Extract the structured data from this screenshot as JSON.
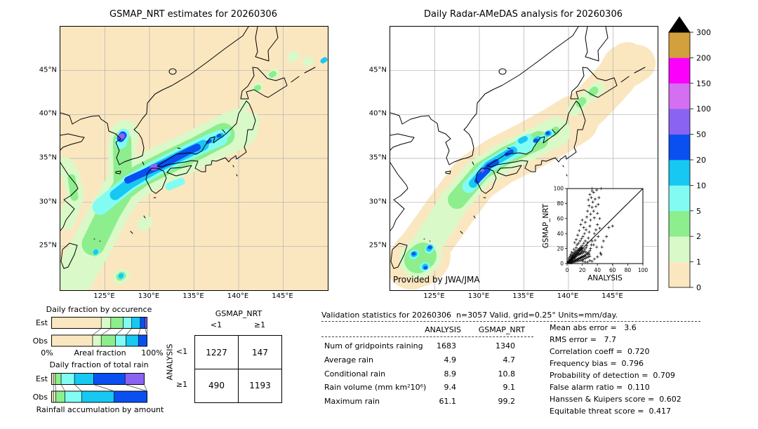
{
  "maps": {
    "left": {
      "title": "GSMAP_NRT estimates for 20260306",
      "bg_color": "#FAE7C0"
    },
    "right": {
      "title": "Daily Radar-AMeDAS analysis for 20260306",
      "bg_color": "#FFFFFF",
      "credit": "Provided by JWA/JMA"
    },
    "lon_ticks": [
      "125°E",
      "130°E",
      "135°E",
      "140°E",
      "145°E"
    ],
    "lat_ticks": [
      "45°N",
      "40°N",
      "35°N",
      "30°N",
      "25°N"
    ],
    "lon_range": [
      120,
      150
    ],
    "lat_range": [
      20,
      50
    ]
  },
  "chart_data": {
    "maps_summary": [
      {
        "type": "heatmap",
        "title": "GSMAP_NRT estimates for 20260306",
        "units": "mm/day",
        "description": "Satellite rain band stretching SW-NE from near Taiwan across the East China Sea, Korea and western Japan; cores of 20-50 mm/day with 50-100 mm/day spots over central Korea and northern Kyushu."
      },
      {
        "type": "heatmap",
        "title": "Daily Radar-AMeDAS analysis for 20260306",
        "units": "mm/day",
        "description": "Radar analysis over Japan only (white = no data): same SW-NE rain band with 20-50 mm/day cores over western Japan and a rainfall cluster near Taiwan/Okinawa; light 0-1 mm/day envelope along the band and over Hokkaido."
      }
    ],
    "colorbar": {
      "levels": [
        "0",
        "1",
        "2",
        "5",
        "10",
        "20",
        "50",
        "100",
        "150",
        "200",
        "300"
      ],
      "colors": [
        "#FAE7C0",
        "#D9F9C8",
        "#8CEE8C",
        "#82FCF2",
        "#16C8F2",
        "#0A50F0",
        "#8B63F2",
        "#D46FF2",
        "#FB00FB",
        "#D2A03C"
      ],
      "over_color": "#000000"
    },
    "occurrence_bar": {
      "type": "bar",
      "stacked": true,
      "orientation": "horizontal",
      "title": "Daily fraction by occurence",
      "xlabel": "Areal fraction",
      "x_min_label": "0%",
      "x_max_label": "100%",
      "bins_mm_day": [
        "0-1",
        "1-2",
        "2-5",
        "5-10",
        "10-20",
        "20-50",
        "50-100"
      ],
      "colors": [
        "#FAE7C0",
        "#D9F9C8",
        "#8CEE8C",
        "#82FCF2",
        "#16C8F2",
        "#0A50F0",
        "#8B63F2"
      ],
      "rows": [
        {
          "name": "Est",
          "values": [
            52,
            10,
            13,
            9,
            9,
            5,
            2
          ]
        },
        {
          "name": "Obs",
          "values": [
            43,
            9,
            15,
            11,
            13,
            9,
            0
          ]
        }
      ]
    },
    "total_rain_bar": {
      "type": "bar",
      "stacked": true,
      "orientation": "horizontal",
      "title": "Daily fraction of total rain",
      "xlabel": "Rainfall accumulation by amount",
      "bins_mm_day": [
        "0-1",
        "1-2",
        "2-5",
        "5-10",
        "10-20",
        "20-50",
        "50-100"
      ],
      "colors": [
        "#FAE7C0",
        "#D9F9C8",
        "#8CEE8C",
        "#82FCF2",
        "#16C8F2",
        "#0A50F0",
        "#8B63F2"
      ],
      "rows": [
        {
          "name": "Est",
          "values": [
            2,
            2,
            6,
            14,
            20,
            33,
            20
          ]
        },
        {
          "name": "Obs",
          "values": [
            2,
            2.5,
            9.5,
            17.5,
            34,
            34.5,
            0
          ]
        }
      ]
    },
    "contingency": {
      "type": "table",
      "col_group": "GSMAP_NRT",
      "row_group": "ANALYSIS",
      "col_labels": [
        "<1",
        "≥1"
      ],
      "row_labels": [
        "<1",
        "≥1"
      ],
      "values": [
        [
          "1227",
          "147"
        ],
        [
          "490",
          "1193"
        ]
      ]
    },
    "scatter": {
      "type": "scatter",
      "marker": "+",
      "xlabel": "ANALYSIS",
      "ylabel": "GSMAP_NRT",
      "xlim": [
        0,
        100
      ],
      "ylim": [
        0,
        100
      ],
      "ticks": [
        0,
        20,
        40,
        60,
        80,
        100
      ],
      "identity_line": true,
      "points": [
        [
          1,
          2
        ],
        [
          2,
          1
        ],
        [
          2,
          3
        ],
        [
          2,
          6
        ],
        [
          3,
          2
        ],
        [
          3,
          4
        ],
        [
          3,
          8
        ],
        [
          4,
          2
        ],
        [
          4,
          5
        ],
        [
          4,
          10
        ],
        [
          5,
          3
        ],
        [
          5,
          6
        ],
        [
          5,
          12
        ],
        [
          6,
          2
        ],
        [
          6,
          5
        ],
        [
          6,
          9
        ],
        [
          6,
          15
        ],
        [
          7,
          3
        ],
        [
          7,
          6
        ],
        [
          7,
          11
        ],
        [
          8,
          4
        ],
        [
          8,
          8
        ],
        [
          8,
          14
        ],
        [
          9,
          3
        ],
        [
          9,
          7
        ],
        [
          9,
          12
        ],
        [
          9,
          19
        ],
        [
          10,
          4
        ],
        [
          10,
          8
        ],
        [
          10,
          15
        ],
        [
          11,
          5
        ],
        [
          11,
          9
        ],
        [
          11,
          17
        ],
        [
          12,
          4
        ],
        [
          12,
          10
        ],
        [
          12,
          21
        ],
        [
          13,
          6
        ],
        [
          13,
          12
        ],
        [
          13,
          25
        ],
        [
          14,
          5
        ],
        [
          14,
          11
        ],
        [
          14,
          18
        ],
        [
          15,
          7
        ],
        [
          15,
          13
        ],
        [
          15,
          27
        ],
        [
          16,
          6
        ],
        [
          16,
          12
        ],
        [
          16,
          20
        ],
        [
          17,
          8
        ],
        [
          17,
          14
        ],
        [
          17,
          30
        ],
        [
          18,
          7
        ],
        [
          18,
          13
        ],
        [
          18,
          22
        ],
        [
          19,
          9
        ],
        [
          19,
          16
        ],
        [
          19,
          33
        ],
        [
          20,
          8
        ],
        [
          20,
          14
        ],
        [
          20,
          24
        ],
        [
          21,
          10
        ],
        [
          21,
          17
        ],
        [
          21,
          36
        ],
        [
          22,
          9
        ],
        [
          22,
          15
        ],
        [
          22,
          27
        ],
        [
          23,
          11
        ],
        [
          23,
          19
        ],
        [
          23,
          40
        ],
        [
          24,
          10
        ],
        [
          24,
          16
        ],
        [
          24,
          30
        ],
        [
          25,
          12
        ],
        [
          25,
          21
        ],
        [
          25,
          45
        ],
        [
          26,
          14
        ],
        [
          26,
          24
        ],
        [
          27,
          12
        ],
        [
          27,
          28
        ],
        [
          28,
          15
        ],
        [
          28,
          34
        ],
        [
          29,
          13
        ],
        [
          29,
          42
        ],
        [
          30,
          17
        ],
        [
          30,
          50
        ],
        [
          31,
          20
        ],
        [
          31,
          58
        ],
        [
          32,
          25
        ],
        [
          33,
          30
        ],
        [
          2,
          2
        ],
        [
          3,
          3
        ],
        [
          4,
          4
        ],
        [
          5,
          5
        ],
        [
          6,
          7
        ],
        [
          7,
          8
        ],
        [
          8,
          10
        ],
        [
          9,
          9
        ],
        [
          10,
          11
        ],
        [
          11,
          13
        ],
        [
          12,
          14
        ],
        [
          13,
          16
        ],
        [
          14,
          15
        ],
        [
          15,
          18
        ],
        [
          16,
          17
        ],
        [
          17,
          19
        ],
        [
          18,
          18
        ],
        [
          19,
          21
        ],
        [
          20,
          20
        ],
        [
          4,
          1
        ],
        [
          6,
          1
        ],
        [
          8,
          2
        ],
        [
          10,
          2
        ],
        [
          12,
          3
        ],
        [
          14,
          3
        ],
        [
          16,
          4
        ],
        [
          18,
          4
        ],
        [
          20,
          5
        ],
        [
          22,
          6
        ],
        [
          24,
          7
        ],
        [
          26,
          8
        ],
        [
          28,
          9
        ],
        [
          30,
          10
        ],
        [
          33,
          3
        ],
        [
          36,
          6
        ],
        [
          40,
          9
        ],
        [
          44,
          14
        ],
        [
          46,
          22
        ],
        [
          48,
          30
        ],
        [
          52,
          36
        ],
        [
          55,
          48
        ],
        [
          60,
          50
        ],
        [
          10,
          28
        ],
        [
          12,
          32
        ],
        [
          14,
          38
        ],
        [
          16,
          44
        ],
        [
          18,
          52
        ],
        [
          20,
          58
        ],
        [
          22,
          48
        ],
        [
          24,
          55
        ],
        [
          26,
          62
        ],
        [
          27,
          70
        ],
        [
          28,
          85
        ],
        [
          29,
          77
        ],
        [
          30,
          92
        ],
        [
          31,
          66
        ],
        [
          32,
          88
        ],
        [
          33,
          75
        ],
        [
          33,
          97
        ],
        [
          34,
          82
        ],
        [
          35,
          70
        ],
        [
          35,
          95
        ],
        [
          36,
          61
        ],
        [
          37,
          86
        ],
        [
          38,
          76
        ],
        [
          39,
          98
        ],
        [
          40,
          67
        ],
        [
          41,
          79
        ],
        [
          42,
          88
        ],
        [
          43,
          60
        ],
        [
          36,
          40
        ],
        [
          38,
          45
        ],
        [
          40,
          52
        ],
        [
          35,
          25
        ],
        [
          37,
          31
        ],
        [
          39,
          22
        ],
        [
          41,
          36
        ],
        [
          43,
          47
        ],
        [
          45,
          12
        ],
        [
          30,
          4
        ],
        [
          27,
          2
        ],
        [
          24,
          2
        ],
        [
          21,
          3
        ],
        [
          45,
          100
        ],
        [
          33,
          100
        ]
      ]
    },
    "validation_table": {
      "type": "table",
      "title": "Validation statistics for 20260306  n=3057 Valid. grid=0.25° Units=mm/day.",
      "columns": [
        "ANALYSIS",
        "GSMAP_NRT"
      ],
      "rows": [
        {
          "label": "Num of gridpoints raining",
          "analysis": "1683",
          "gsmap": "1340"
        },
        {
          "label": "Average rain",
          "analysis": "4.9",
          "gsmap": "4.7"
        },
        {
          "label": "Conditional rain",
          "analysis": "8.9",
          "gsmap": "10.8"
        },
        {
          "label": "Rain volume (mm km²10⁶)",
          "analysis": "9.4",
          "gsmap": "9.1"
        },
        {
          "label": "Maximum rain",
          "analysis": "61.1",
          "gsmap": "99.2"
        }
      ],
      "scores": [
        "Mean abs error =   3.6",
        "RMS error =   7.7",
        "Correlation coeff =  0.720",
        "Frequency bias =  0.796",
        "Probability of detection =  0.709",
        "False alarm ratio =  0.110",
        "Hanssen & Kuipers score =  0.602",
        "Equitable threat score =  0.417"
      ]
    }
  }
}
